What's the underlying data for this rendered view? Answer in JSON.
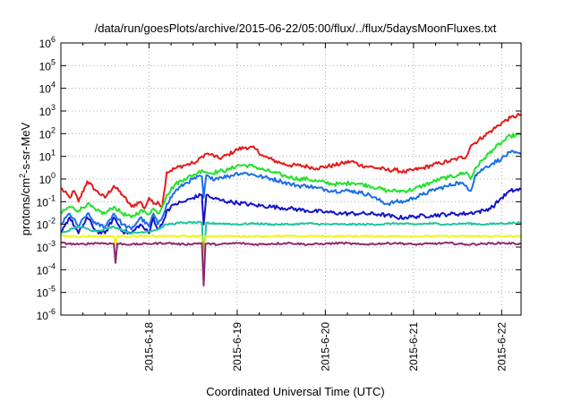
{
  "chart_data": {
    "type": "line",
    "title": "/data/run/goesPlots/archive/2015-06-22/05:00/flux/../flux/5daysMoonFluxes.txt",
    "xlabel": "Coordinated Universal Time (UTC)",
    "ylabel_parts": {
      "pre": "protons/cm",
      "sup": "2",
      "post": "-s-sr-MeV"
    },
    "yscale": "log",
    "ylim": [
      1e-06,
      1000000.0
    ],
    "xlim": [
      0.0,
      5.22
    ],
    "grid": true,
    "legend": "none",
    "ytick_exponents": [
      "-6",
      "-5",
      "-4",
      "-3",
      "-2",
      "-1",
      "0",
      "1",
      "2",
      "3",
      "4",
      "5",
      "6"
    ],
    "xticks": [
      {
        "x": 1,
        "label": "2015-6-18"
      },
      {
        "x": 2,
        "label": "2015-6-19"
      },
      {
        "x": 3,
        "label": "2015-6-20"
      },
      {
        "x": 4,
        "label": "2015-6-21"
      },
      {
        "x": 5,
        "label": "2015-6-22"
      }
    ],
    "series": [
      {
        "color": "#e51b1b",
        "x": [
          0,
          0.1,
          0.15,
          0.2,
          0.3,
          0.4,
          0.5,
          0.6,
          0.7,
          0.8,
          0.9,
          0.95,
          1.0,
          1.05,
          1.1,
          1.15,
          1.2,
          1.3,
          1.4,
          1.5,
          1.55,
          1.6,
          1.65,
          1.7,
          1.8,
          1.9,
          2.0,
          2.1,
          2.2,
          2.3,
          2.4,
          2.5,
          2.6,
          2.7,
          2.8,
          2.9,
          3.0,
          3.1,
          3.2,
          3.3,
          3.4,
          3.5,
          3.6,
          3.7,
          3.8,
          3.9,
          4.0,
          4.1,
          4.2,
          4.3,
          4.4,
          4.5,
          4.6,
          4.65,
          4.7,
          4.8,
          4.9,
          5.0,
          5.1,
          5.22
        ],
        "y": [
          0.4,
          0.15,
          0.3,
          0.1,
          0.8,
          0.3,
          0.15,
          0.5,
          0.2,
          0.06,
          0.1,
          0.05,
          0.15,
          0.08,
          0.1,
          0.06,
          2,
          3,
          4,
          5,
          6,
          10,
          13,
          12,
          8,
          12,
          20,
          25,
          22,
          10,
          7,
          5,
          4,
          4,
          3.5,
          3,
          3.5,
          4,
          5,
          6,
          4,
          3.5,
          3,
          2.5,
          2.5,
          2,
          2.5,
          3,
          4,
          5,
          6,
          8,
          10,
          30,
          40,
          80,
          150,
          300,
          500,
          700
        ]
      },
      {
        "color": "#22e22b",
        "x": [
          0,
          0.1,
          0.2,
          0.3,
          0.4,
          0.5,
          0.6,
          0.7,
          0.8,
          0.9,
          1.0,
          1.05,
          1.1,
          1.15,
          1.2,
          1.3,
          1.4,
          1.5,
          1.55,
          1.6,
          1.65,
          1.7,
          1.8,
          1.9,
          2.0,
          2.1,
          2.2,
          2.3,
          2.4,
          2.5,
          2.6,
          2.7,
          2.8,
          2.9,
          3.0,
          3.1,
          3.2,
          3.3,
          3.4,
          3.5,
          3.6,
          3.7,
          3.8,
          3.9,
          4.0,
          4.1,
          4.2,
          4.3,
          4.4,
          4.5,
          4.6,
          4.65,
          4.7,
          4.8,
          4.9,
          5.0,
          5.1,
          5.22
        ],
        "y": [
          0.03,
          0.06,
          0.04,
          0.08,
          0.04,
          0.03,
          0.06,
          0.03,
          0.02,
          0.04,
          0.03,
          0.05,
          0.03,
          0.06,
          0.2,
          0.6,
          1,
          1.5,
          1.8,
          2.5,
          2,
          1.8,
          2.2,
          2.5,
          4,
          4,
          3.5,
          2.5,
          2,
          1.5,
          1.2,
          1,
          1,
          0.8,
          0.7,
          0.6,
          0.6,
          0.7,
          0.6,
          0.5,
          0.4,
          0.3,
          0.3,
          0.3,
          0.35,
          0.5,
          0.7,
          1,
          1.2,
          1.5,
          2,
          1,
          3,
          8,
          20,
          40,
          80,
          90
        ]
      },
      {
        "color": "#1b6fe8",
        "x": [
          0,
          0.1,
          0.2,
          0.3,
          0.4,
          0.5,
          0.6,
          0.7,
          0.8,
          0.9,
          1.0,
          1.05,
          1.1,
          1.15,
          1.2,
          1.3,
          1.4,
          1.5,
          1.6,
          1.62,
          1.65,
          1.7,
          1.8,
          1.9,
          2.0,
          2.1,
          2.2,
          2.3,
          2.4,
          2.5,
          2.6,
          2.7,
          2.8,
          2.9,
          3.0,
          3.1,
          3.2,
          3.3,
          3.4,
          3.5,
          3.6,
          3.7,
          3.8,
          3.9,
          4.0,
          4.1,
          4.2,
          4.3,
          4.4,
          4.5,
          4.6,
          4.65,
          4.7,
          4.8,
          4.9,
          5.0,
          5.1,
          5.22
        ],
        "y": [
          0.01,
          0.03,
          0.008,
          0.03,
          0.01,
          0.008,
          0.03,
          0.01,
          0.006,
          0.02,
          0.008,
          0.03,
          0.01,
          0.02,
          0.08,
          0.3,
          0.6,
          1,
          1.3,
          0.15,
          1.5,
          1,
          1.2,
          1.3,
          1.8,
          1.8,
          1.5,
          1.2,
          1,
          0.8,
          0.6,
          0.5,
          0.5,
          0.4,
          0.35,
          0.3,
          0.3,
          0.3,
          0.25,
          0.2,
          0.12,
          0.08,
          0.1,
          0.1,
          0.15,
          0.2,
          0.3,
          0.4,
          0.5,
          0.7,
          0.5,
          0.3,
          1.5,
          3,
          5,
          8,
          15,
          12
        ]
      },
      {
        "color": "#1414c8",
        "x": [
          0,
          0.1,
          0.2,
          0.3,
          0.4,
          0.5,
          0.6,
          0.7,
          0.8,
          0.9,
          1.0,
          1.05,
          1.1,
          1.15,
          1.2,
          1.3,
          1.4,
          1.5,
          1.6,
          1.62,
          1.65,
          1.7,
          1.8,
          1.9,
          2.0,
          2.2,
          2.4,
          2.6,
          2.8,
          3.0,
          3.2,
          3.4,
          3.6,
          3.7,
          3.8,
          3.9,
          4.0,
          4.2,
          4.4,
          4.6,
          4.7,
          4.8,
          4.9,
          5.0,
          5.1,
          5.22
        ],
        "y": [
          0.005,
          0.02,
          0.004,
          0.02,
          0.005,
          0.004,
          0.02,
          0.005,
          0.004,
          0.01,
          0.004,
          0.02,
          0.006,
          0.01,
          0.04,
          0.08,
          0.1,
          0.15,
          0.2,
          0.01,
          0.2,
          0.15,
          0.12,
          0.1,
          0.09,
          0.07,
          0.06,
          0.05,
          0.04,
          0.035,
          0.03,
          0.03,
          0.028,
          0.025,
          0.02,
          0.02,
          0.022,
          0.025,
          0.028,
          0.03,
          0.035,
          0.04,
          0.06,
          0.15,
          0.3,
          0.35
        ]
      },
      {
        "color": "#1fc4a0",
        "x": [
          0,
          0.2,
          0.4,
          0.6,
          0.8,
          1.0,
          1.1,
          1.2,
          1.4,
          1.6,
          1.62,
          1.65,
          1.7,
          1.8,
          2.0,
          2.2,
          2.4,
          2.6,
          2.8,
          3.0,
          3.2,
          3.4,
          3.6,
          3.8,
          4.0,
          4.2,
          4.4,
          4.6,
          4.8,
          5.0,
          5.22
        ],
        "y": [
          0.004,
          0.008,
          0.005,
          0.008,
          0.004,
          0.005,
          0.006,
          0.01,
          0.012,
          0.012,
          0.0003,
          0.012,
          0.011,
          0.011,
          0.01,
          0.011,
          0.01,
          0.01,
          0.011,
          0.01,
          0.01,
          0.01,
          0.01,
          0.011,
          0.01,
          0.011,
          0.01,
          0.011,
          0.01,
          0.011,
          0.012
        ]
      },
      {
        "color": "#f2f21e",
        "x": [
          0,
          0.5,
          0.6,
          0.62,
          0.64,
          1.0,
          1.5,
          1.6,
          1.62,
          1.64,
          1.7,
          2.0,
          2.5,
          3.0,
          3.5,
          4.0,
          4.5,
          5.0,
          5.22
        ],
        "y": [
          0.003,
          0.003,
          0.003,
          0.0012,
          0.003,
          0.003,
          0.003,
          0.003,
          5e-05,
          0.003,
          0.003,
          0.003,
          0.003,
          0.003,
          0.003,
          0.003,
          0.003,
          0.003,
          0.003
        ]
      },
      {
        "color": "#8e2a6e",
        "x": [
          0,
          0.2,
          0.4,
          0.6,
          0.62,
          0.64,
          0.8,
          1.0,
          1.2,
          1.4,
          1.6,
          1.62,
          1.64,
          1.8,
          2.0,
          2.2,
          2.4,
          2.6,
          2.8,
          3.0,
          3.2,
          3.4,
          3.6,
          3.8,
          4.0,
          4.2,
          4.4,
          4.6,
          4.8,
          5.0,
          5.22
        ],
        "y": [
          0.0015,
          0.0013,
          0.0015,
          0.0014,
          0.0002,
          0.0014,
          0.0013,
          0.0014,
          0.0015,
          0.0013,
          0.0015,
          2e-05,
          0.0014,
          0.0013,
          0.0015,
          0.0013,
          0.0014,
          0.0015,
          0.0013,
          0.0014,
          0.0015,
          0.0013,
          0.0014,
          0.0015,
          0.0013,
          0.0014,
          0.0015,
          0.0013,
          0.0014,
          0.0015,
          0.0014
        ]
      }
    ]
  }
}
